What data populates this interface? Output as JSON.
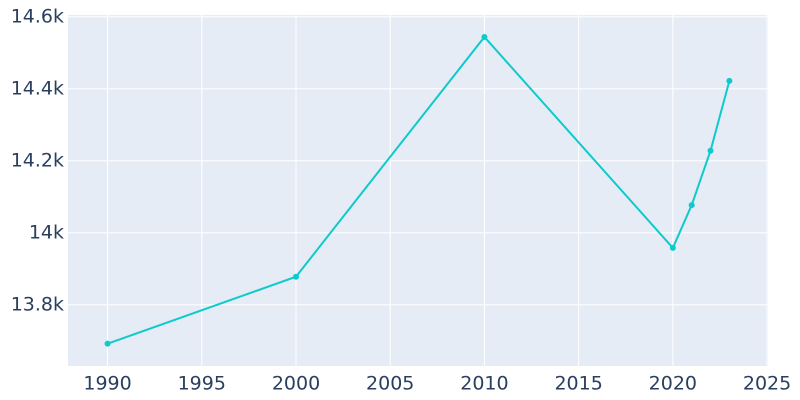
{
  "chart_data": {
    "type": "line",
    "x": [
      1990,
      2000,
      2010,
      2020,
      2021,
      2022,
      2023
    ],
    "series": [
      {
        "color": "#0fcaca",
        "values": [
          13692,
          13878,
          14544,
          13958,
          14077,
          14228,
          14422
        ]
      }
    ],
    "xlim": [
      1987.9,
      2025.05
    ],
    "xticks": [
      1990,
      1995,
      2000,
      2005,
      2010,
      2015,
      2020,
      2025
    ],
    "ylim": [
      13630,
      14605
    ],
    "yticks": [
      {
        "value": 13800,
        "label": "13.8k"
      },
      {
        "value": 14000,
        "label": "14k"
      },
      {
        "value": 14200,
        "label": "14.2k"
      },
      {
        "value": 14400,
        "label": "14.4k"
      },
      {
        "value": 14600,
        "label": "14.6k"
      }
    ],
    "grid": true,
    "background": "#e5ecf6"
  }
}
